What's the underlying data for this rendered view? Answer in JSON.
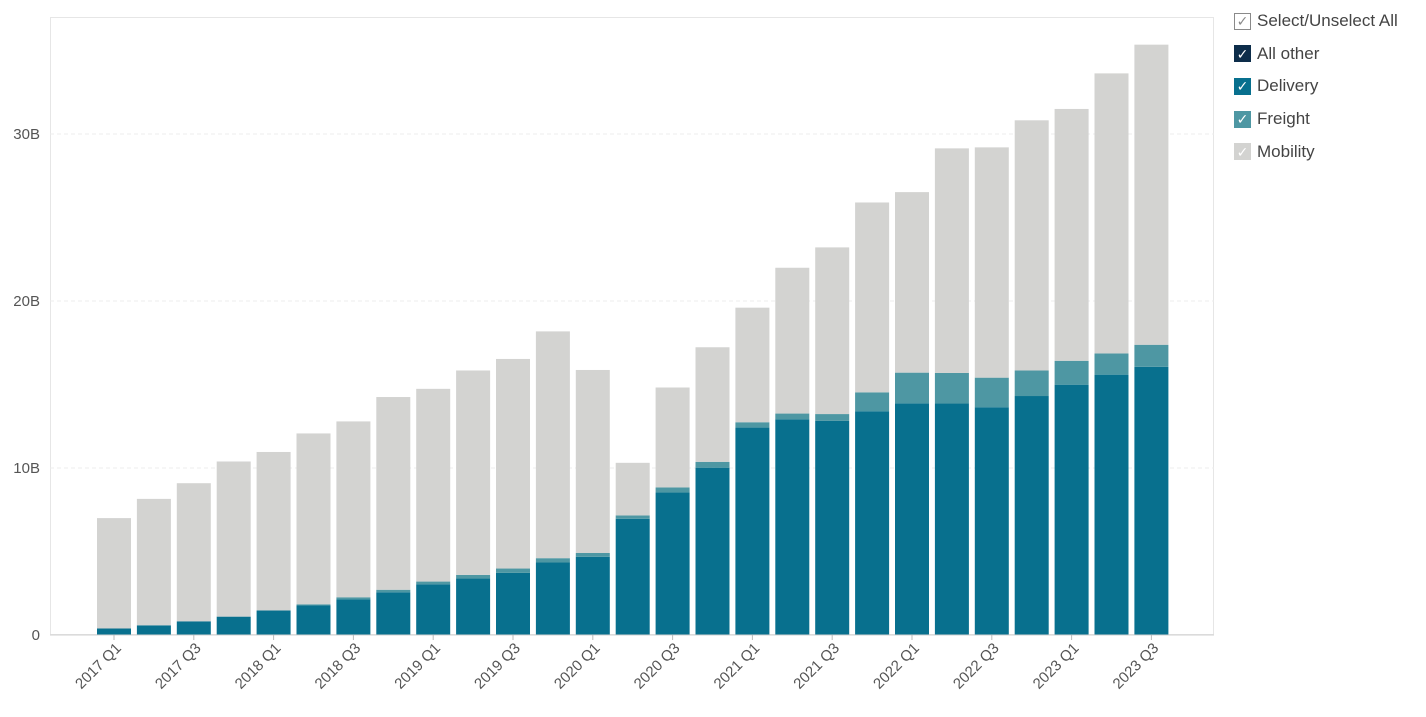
{
  "legend": {
    "select_all": {
      "label": "Select/Unselect All",
      "check": "✓"
    },
    "items": [
      {
        "label": "All other",
        "color": "#0d2d4a",
        "check": "✓"
      },
      {
        "label": "Delivery",
        "color": "#08708e",
        "check": "✓"
      },
      {
        "label": "Freight",
        "color": "#4e97a3",
        "check": "✓"
      },
      {
        "label": "Mobility",
        "color": "#d3d3d1",
        "check": "✓"
      }
    ]
  },
  "chart_data": {
    "type": "bar",
    "stacked": true,
    "categories": [
      "2017 Q1",
      "2017 Q2",
      "2017 Q3",
      "2017 Q4",
      "2018 Q1",
      "2018 Q2",
      "2018 Q3",
      "2018 Q4",
      "2019 Q1",
      "2019 Q2",
      "2019 Q3",
      "2019 Q4",
      "2020 Q1",
      "2020 Q2",
      "2020 Q3",
      "2020 Q4",
      "2021 Q1",
      "2021 Q2",
      "2021 Q3",
      "2021 Q4",
      "2022 Q1",
      "2022 Q2",
      "2022 Q3",
      "2022 Q4",
      "2023 Q1",
      "2023 Q2",
      "2023 Q3"
    ],
    "x_tick_labels": [
      "2017 Q1",
      "2017 Q3",
      "2018 Q1",
      "2018 Q3",
      "2019 Q1",
      "2019 Q3",
      "2020 Q1",
      "2020 Q3",
      "2021 Q1",
      "2021 Q3",
      "2022 Q1",
      "2022 Q3",
      "2023 Q1",
      "2023 Q3"
    ],
    "series": [
      {
        "name": "All other",
        "color": "#0d2d4a",
        "values": [
          0,
          0,
          0,
          0,
          0,
          0,
          0,
          0,
          0,
          0,
          0,
          0,
          0,
          0,
          0,
          0,
          0,
          0,
          0,
          0,
          0,
          0,
          0,
          0,
          0,
          0,
          0
        ]
      },
      {
        "name": "Delivery",
        "color": "#08708e",
        "values": [
          0.39,
          0.58,
          0.82,
          1.1,
          1.47,
          1.77,
          2.13,
          2.56,
          3.03,
          3.38,
          3.72,
          4.34,
          4.68,
          6.96,
          8.53,
          10.02,
          12.42,
          12.91,
          12.82,
          13.4,
          13.87,
          13.86,
          13.64,
          14.31,
          14.99,
          15.59,
          16.06
        ]
      },
      {
        "name": "Freight",
        "color": "#4e97a3",
        "values": [
          0,
          0,
          0,
          0,
          0,
          0.07,
          0.13,
          0.15,
          0.17,
          0.22,
          0.26,
          0.26,
          0.23,
          0.2,
          0.31,
          0.35,
          0.32,
          0.35,
          0.41,
          1.13,
          1.84,
          1.83,
          1.77,
          1.53,
          1.43,
          1.27,
          1.32
        ]
      },
      {
        "name": "Mobility",
        "color": "#d3d3d1",
        "values": [
          6.61,
          7.57,
          8.27,
          9.29,
          9.49,
          10.23,
          10.53,
          11.54,
          11.54,
          12.24,
          12.55,
          13.58,
          10.96,
          3.15,
          5.98,
          6.86,
          6.86,
          8.73,
          9.98,
          11.37,
          10.81,
          13.45,
          13.79,
          14.98,
          15.08,
          16.77,
          17.97
        ]
      }
    ],
    "y_ticks": [
      0,
      10,
      20,
      30
    ],
    "y_tick_labels": [
      "0",
      "10B",
      "20B",
      "30B"
    ],
    "ylim": [
      0,
      37
    ],
    "grid": true,
    "legend_position": "right"
  }
}
